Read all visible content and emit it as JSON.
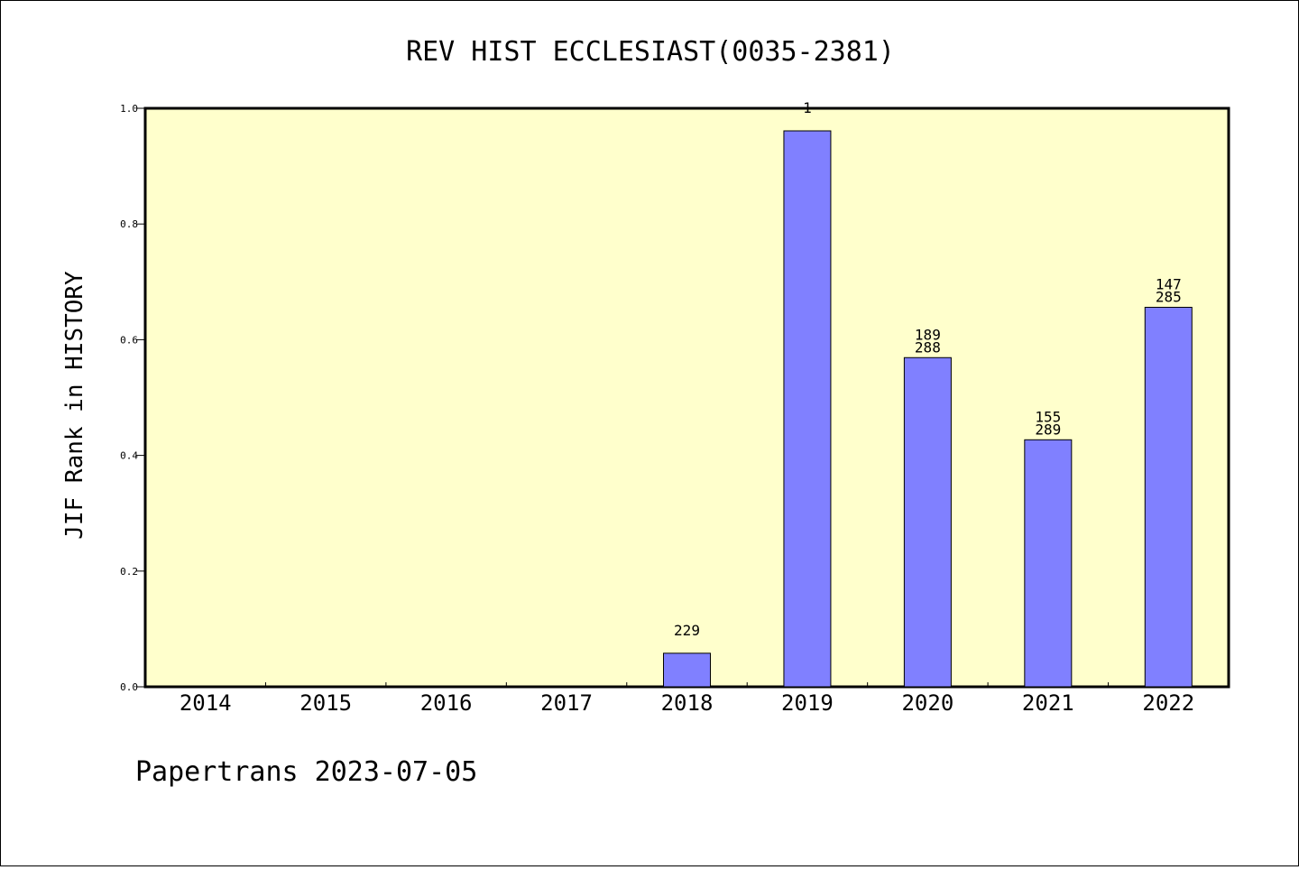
{
  "chart_data": {
    "type": "bar",
    "title": "REV HIST ECCLESIAST(0035-2381)",
    "xlabel": "",
    "ylabel": "JIF Rank in HISTORY",
    "footer": "Papertrans 2023-07-05",
    "categories": [
      "2014",
      "2015",
      "2016",
      "2017",
      "2018",
      "2019",
      "2020",
      "2021",
      "2022"
    ],
    "values": [
      null,
      null,
      null,
      null,
      0.058,
      0.961,
      0.569,
      0.427,
      0.656
    ],
    "bar_labels": [
      [],
      [],
      [],
      [],
      [
        "229"
      ],
      [
        "1"
      ],
      [
        "189",
        "288"
      ],
      [
        "155",
        "289"
      ],
      [
        "147",
        "285"
      ]
    ],
    "ylim": [
      0,
      1.0
    ],
    "yticks": [
      "0.0",
      "0.2",
      "0.4",
      "0.6",
      "0.8",
      "1.0"
    ],
    "grid": false,
    "colors": {
      "plot_background": "#ffffcc",
      "bar_fill": "#8080ff",
      "bar_stroke": "#000000"
    }
  }
}
